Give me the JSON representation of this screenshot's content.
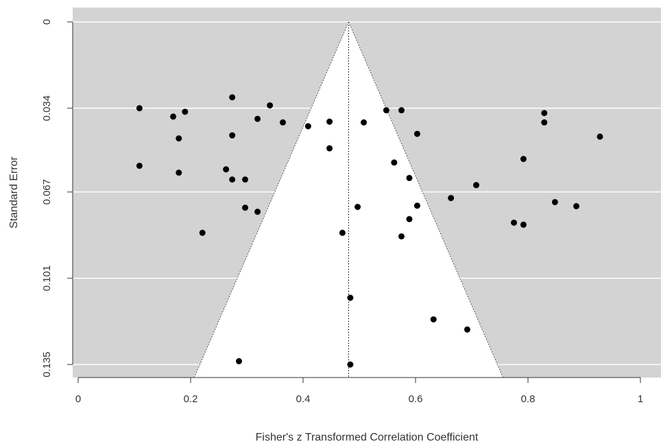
{
  "chart_data": {
    "type": "scatter",
    "title": "",
    "xlabel": "Fisher's z Transformed Correlation Coefficient",
    "ylabel": "Standard Error",
    "xlim": [
      0,
      1
    ],
    "ylim": [
      0,
      0.135
    ],
    "y_reversed": true,
    "x_ticks": [
      {
        "value": 0,
        "label": "0"
      },
      {
        "value": 0.2,
        "label": "0.2"
      },
      {
        "value": 0.4,
        "label": "0.4"
      },
      {
        "value": 0.6,
        "label": "0.6"
      },
      {
        "value": 0.8,
        "label": "0.8"
      },
      {
        "value": 1,
        "label": "1"
      }
    ],
    "y_ticks": [
      {
        "value": 0,
        "label": "0"
      },
      {
        "value": 0.034,
        "label": "0.034"
      },
      {
        "value": 0.067,
        "label": "0.067"
      },
      {
        "value": 0.101,
        "label": "0.101"
      },
      {
        "value": 0.135,
        "label": "0.135"
      }
    ],
    "summary_estimate": 0.481,
    "funnel_z": 1.96,
    "colors": {
      "background": "#d3d3d3",
      "funnel": "#ffffff",
      "gridline": "#ffffff",
      "points": "#000000",
      "funnel_edge": "#555555",
      "axis": "#333333"
    },
    "points": [
      {
        "x": 0.109,
        "y": 0.034
      },
      {
        "x": 0.169,
        "y": 0.0373
      },
      {
        "x": 0.19,
        "y": 0.0354
      },
      {
        "x": 0.179,
        "y": 0.0459
      },
      {
        "x": 0.274,
        "y": 0.0297
      },
      {
        "x": 0.274,
        "y": 0.0447
      },
      {
        "x": 0.319,
        "y": 0.0382
      },
      {
        "x": 0.341,
        "y": 0.0329
      },
      {
        "x": 0.364,
        "y": 0.0396
      },
      {
        "x": 0.409,
        "y": 0.0411
      },
      {
        "x": 0.447,
        "y": 0.0393
      },
      {
        "x": 0.447,
        "y": 0.0498
      },
      {
        "x": 0.508,
        "y": 0.0396
      },
      {
        "x": 0.548,
        "y": 0.0348
      },
      {
        "x": 0.575,
        "y": 0.0348
      },
      {
        "x": 0.603,
        "y": 0.0441
      },
      {
        "x": 0.829,
        "y": 0.0359
      },
      {
        "x": 0.829,
        "y": 0.0396
      },
      {
        "x": 0.928,
        "y": 0.0452
      },
      {
        "x": 0.109,
        "y": 0.0567
      },
      {
        "x": 0.179,
        "y": 0.0594
      },
      {
        "x": 0.263,
        "y": 0.0581
      },
      {
        "x": 0.274,
        "y": 0.0621
      },
      {
        "x": 0.297,
        "y": 0.0621
      },
      {
        "x": 0.297,
        "y": 0.0732
      },
      {
        "x": 0.319,
        "y": 0.0748
      },
      {
        "x": 0.562,
        "y": 0.0554
      },
      {
        "x": 0.589,
        "y": 0.0615
      },
      {
        "x": 0.708,
        "y": 0.0643
      },
      {
        "x": 0.792,
        "y": 0.054
      },
      {
        "x": 0.663,
        "y": 0.0694
      },
      {
        "x": 0.603,
        "y": 0.0724
      },
      {
        "x": 0.497,
        "y": 0.0729
      },
      {
        "x": 0.589,
        "y": 0.0777
      },
      {
        "x": 0.848,
        "y": 0.071
      },
      {
        "x": 0.886,
        "y": 0.0726
      },
      {
        "x": 0.775,
        "y": 0.0791
      },
      {
        "x": 0.792,
        "y": 0.0799
      },
      {
        "x": 0.221,
        "y": 0.0831
      },
      {
        "x": 0.47,
        "y": 0.0831
      },
      {
        "x": 0.575,
        "y": 0.0845
      },
      {
        "x": 0.484,
        "y": 0.1087
      },
      {
        "x": 0.632,
        "y": 0.1172
      },
      {
        "x": 0.692,
        "y": 0.1212
      },
      {
        "x": 0.286,
        "y": 0.1337
      },
      {
        "x": 0.484,
        "y": 0.135
      }
    ]
  }
}
